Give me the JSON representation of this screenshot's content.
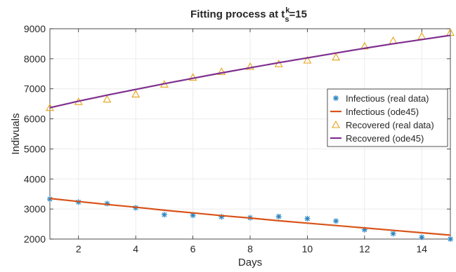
{
  "chart_data": {
    "type": "line",
    "title": {
      "main": "Fitting process at t",
      "sup": "k",
      "sub": "s",
      "suffix": "=15"
    },
    "xlabel": "Days",
    "ylabel": "Indivuals",
    "xlim": [
      1,
      15
    ],
    "ylim": [
      2000,
      9000
    ],
    "xticks": [
      2,
      4,
      6,
      8,
      10,
      12,
      14
    ],
    "yticks": [
      2000,
      3000,
      4000,
      5000,
      6000,
      7000,
      8000,
      9000
    ],
    "grid": true,
    "legend_position": "right",
    "series": [
      {
        "name": "Infectious (real data)",
        "kind": "scatter",
        "marker": "asterisk",
        "color": "#2e86c1",
        "x": [
          1,
          2,
          3,
          4,
          5,
          6,
          7,
          8,
          9,
          10,
          11,
          12,
          13,
          14,
          15
        ],
        "y": [
          3330,
          3230,
          3180,
          3040,
          2810,
          2790,
          2740,
          2710,
          2750,
          2680,
          2600,
          2310,
          2180,
          2060,
          2000
        ]
      },
      {
        "name": "Infectious (ode45)",
        "kind": "line",
        "color": "#d95319",
        "x": [
          1,
          2,
          3,
          4,
          5,
          6,
          7,
          8,
          9,
          10,
          11,
          12,
          13,
          14,
          15
        ],
        "y": [
          3350,
          3250,
          3150,
          3060,
          2960,
          2870,
          2780,
          2700,
          2610,
          2530,
          2450,
          2370,
          2290,
          2210,
          2130
        ]
      },
      {
        "name": "Recovered (real data)",
        "kind": "scatter",
        "marker": "triangle",
        "color": "#e8a317",
        "x": [
          1,
          2,
          3,
          4,
          5,
          6,
          7,
          8,
          9,
          10,
          11,
          12,
          13,
          14,
          15
        ],
        "y": [
          6370,
          6570,
          6650,
          6820,
          7150,
          7380,
          7570,
          7740,
          7830,
          7950,
          8050,
          8420,
          8600,
          8750,
          8870
        ]
      },
      {
        "name": "Recovered (ode45)",
        "kind": "line",
        "color": "#7e2f8e",
        "x": [
          1,
          2,
          3,
          4,
          5,
          6,
          7,
          8,
          9,
          10,
          11,
          12,
          13,
          14,
          15
        ],
        "y": [
          6370,
          6590,
          6790,
          6980,
          7170,
          7350,
          7530,
          7700,
          7870,
          8030,
          8190,
          8350,
          8500,
          8640,
          8780
        ]
      }
    ]
  }
}
